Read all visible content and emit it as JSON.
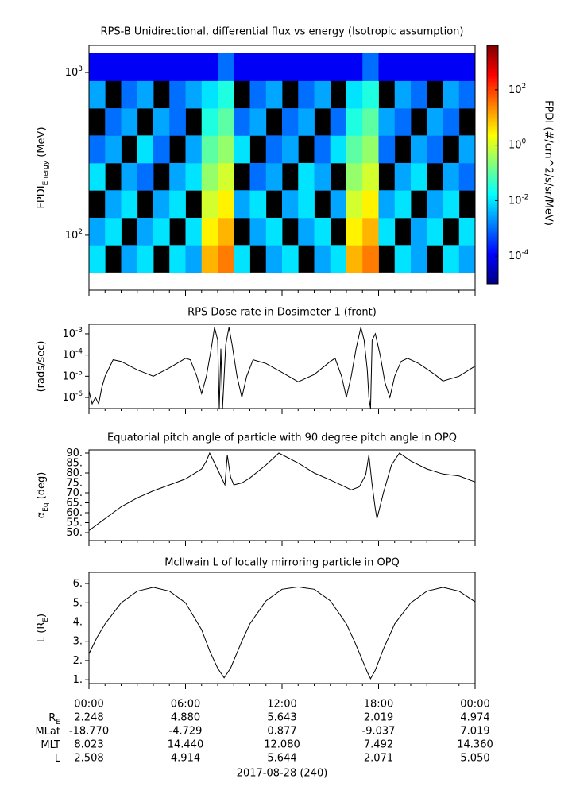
{
  "chart_data": [
    {
      "type": "spectrogram",
      "title": "RPS-B  Unidirectional, differential flux vs energy (Isotropic assumption)",
      "ylabel": {
        "text": "FPDI",
        "sub": "Energy",
        "suffix": " (MeV)"
      },
      "log_y": true,
      "ylim": [
        46,
        1466
      ],
      "yticks": [
        {
          "value": 100,
          "label": "10",
          "sup": "2"
        },
        {
          "value": 1000,
          "label": "10",
          "sup": "3"
        }
      ],
      "xlim": [
        0,
        24
      ],
      "xticks": [
        0,
        6,
        12,
        18,
        24
      ],
      "x_minor_step": 1,
      "x_bins": [
        0,
        1,
        2,
        3,
        4,
        5,
        6,
        7,
        8,
        9,
        10,
        11,
        12,
        13,
        14,
        15,
        16,
        17,
        18,
        19,
        20,
        21,
        22,
        23,
        24
      ],
      "y_bins": [
        59,
        87,
        128,
        189,
        278,
        410,
        603,
        889,
        1310
      ],
      "values": [
        [
          0.01,
          null,
          0.003,
          0.01,
          null,
          0.01,
          0.003,
          10,
          30,
          0.01,
          null,
          0.003,
          0.01,
          null,
          0.003,
          0.01,
          10,
          30,
          null,
          0.01,
          0.003,
          null,
          0.01,
          0.003
        ],
        [
          0.003,
          0.01,
          null,
          0.003,
          0.01,
          null,
          0.01,
          3,
          10,
          null,
          0.003,
          0.01,
          null,
          0.003,
          0.01,
          null,
          3,
          10,
          0.01,
          null,
          0.003,
          0.01,
          null,
          0.01
        ],
        [
          null,
          0.003,
          0.01,
          null,
          0.003,
          0.01,
          null,
          1,
          3,
          0.003,
          0.01,
          null,
          0.003,
          0.01,
          null,
          0.003,
          1,
          3,
          0.003,
          0.01,
          null,
          0.003,
          0.01,
          null
        ],
        [
          0.01,
          null,
          0.003,
          0.001,
          null,
          0.003,
          0.01,
          0.3,
          1,
          null,
          0.001,
          0.003,
          null,
          0.01,
          0.003,
          null,
          0.3,
          1,
          null,
          0.003,
          0.01,
          null,
          0.003,
          0.001
        ],
        [
          0.001,
          0.003,
          null,
          0.01,
          0.001,
          null,
          0.003,
          0.1,
          0.3,
          0.01,
          null,
          0.001,
          0.003,
          null,
          0.001,
          0.01,
          0.1,
          0.3,
          0.001,
          null,
          0.003,
          0.001,
          null,
          0.003
        ],
        [
          null,
          0.001,
          0.003,
          null,
          0.003,
          0.001,
          null,
          0.03,
          0.1,
          0.001,
          0.003,
          null,
          0.001,
          0.003,
          null,
          0.001,
          0.03,
          0.1,
          0.003,
          0.001,
          null,
          0.003,
          0.001,
          null
        ],
        [
          0.003,
          null,
          0.001,
          0.003,
          null,
          0.001,
          0.003,
          0.01,
          0.03,
          null,
          0.001,
          0.003,
          null,
          0.001,
          0.003,
          null,
          0.01,
          0.03,
          null,
          0.003,
          0.001,
          null,
          0.003,
          0.001
        ],
        [
          0.0001,
          0.0001,
          0.0001,
          0.0001,
          0.0001,
          0.0001,
          0.0001,
          0.0001,
          0.001,
          0.0001,
          0.0001,
          0.0001,
          0.0001,
          0.0001,
          0.0001,
          0.0001,
          0.0001,
          0.001,
          0.0001,
          0.0001,
          0.0001,
          0.0001,
          0.0001,
          0.0001
        ]
      ],
      "colormap": "jet",
      "zlim": [
        1e-05,
        4000
      ],
      "zticks": [
        {
          "value": 100,
          "label": "10",
          "sup": "2"
        },
        {
          "value": 1,
          "label": "10",
          "sup": "0"
        },
        {
          "value": 0.01,
          "label": "10",
          "sup": "-2"
        },
        {
          "value": 0.0001,
          "label": "10",
          "sup": "-4"
        }
      ],
      "zlabel": "FPDI (#/cm^2/s/sr/MeV)"
    },
    {
      "type": "line",
      "title": "RPS  Dose rate in Dosimeter 1 (front)",
      "ylabel": "(rads/sec)",
      "log_y": true,
      "ylim": [
        3e-07,
        0.0028
      ],
      "yticks": [
        {
          "value": 1e-06,
          "label": "10",
          "sup": "-6"
        },
        {
          "value": 1e-05,
          "label": "10",
          "sup": "-5"
        },
        {
          "value": 0.0001,
          "label": "10",
          "sup": "-4"
        },
        {
          "value": 0.001,
          "label": "10",
          "sup": "-3"
        }
      ],
      "xlim": [
        0,
        24
      ],
      "xticks": [
        0,
        6,
        12,
        18,
        24
      ],
      "x_minor_step": 1,
      "color": "#000000",
      "x": [
        0,
        0.2,
        0.4,
        0.6,
        0.8,
        1.0,
        1.5,
        2,
        3,
        4,
        5,
        6,
        6.3,
        6.7,
        7.0,
        7.3,
        7.6,
        7.8,
        8.0,
        8.1,
        8.2,
        8.3,
        8.5,
        8.7,
        8.9,
        9.2,
        9.5,
        9.8,
        10.2,
        11,
        12,
        13,
        14,
        15,
        15.3,
        15.7,
        16,
        16.3,
        16.6,
        16.9,
        17.1,
        17.3,
        17.4,
        17.5,
        17.6,
        17.8,
        18.1,
        18.4,
        18.7,
        19,
        19.4,
        19.8,
        20.5,
        21.5,
        22,
        23,
        24
      ],
      "values": [
        2e-06,
        5e-07,
        1e-06,
        5e-07,
        3e-06,
        1e-05,
        6e-05,
        5e-05,
        2e-05,
        1e-05,
        2.5e-05,
        7e-05,
        6e-05,
        1e-05,
        1.5e-06,
        1e-05,
        0.0002,
        0.002,
        0.0005,
        3e-07,
        0.0002,
        3e-07,
        0.0003,
        0.002,
        0.0003,
        1e-05,
        1e-06,
        1e-05,
        6e-05,
        4e-05,
        1.5e-05,
        5.5e-06,
        1.2e-05,
        5e-05,
        7e-05,
        1e-05,
        1e-06,
        1e-05,
        0.0002,
        0.002,
        0.0005,
        2e-05,
        1e-06,
        3e-07,
        0.0005,
        0.001,
        0.0001,
        5e-06,
        1e-06,
        1e-05,
        5e-05,
        7e-05,
        4e-05,
        1.2e-05,
        6e-06,
        1e-05,
        3e-05
      ]
    },
    {
      "type": "line",
      "title": "Equatorial pitch angle of particle with 90 degree pitch angle in OPQ",
      "ylabel": {
        "text": "α",
        "sub": "Eq",
        "suffix": " (deg)"
      },
      "ylim": [
        46,
        91.6
      ],
      "yticks": [
        {
          "value": 50,
          "label": "50."
        },
        {
          "value": 55,
          "label": "55."
        },
        {
          "value": 60,
          "label": "60."
        },
        {
          "value": 65,
          "label": "65."
        },
        {
          "value": 70,
          "label": "70."
        },
        {
          "value": 75,
          "label": "75."
        },
        {
          "value": 80,
          "label": "80."
        },
        {
          "value": 85,
          "label": "85."
        },
        {
          "value": 90,
          "label": "90."
        }
      ],
      "xlim": [
        0,
        24
      ],
      "xticks": [
        0,
        6,
        12,
        18,
        24
      ],
      "x_minor_step": 1,
      "color": "#000000",
      "x": [
        0,
        1,
        2,
        3,
        4,
        5,
        6,
        7,
        7.3,
        7.5,
        7.8,
        8.1,
        8.45,
        8.6,
        8.8,
        9.0,
        9.5,
        10,
        11,
        11.8,
        13,
        14,
        15,
        15.8,
        16.3,
        16.8,
        17.2,
        17.4,
        17.6,
        17.8,
        17.9,
        18.3,
        18.8,
        19.3,
        20,
        21,
        22,
        23,
        24
      ],
      "values": [
        51,
        57,
        63,
        67.5,
        71,
        74,
        77,
        82,
        86,
        90,
        85,
        80,
        74,
        89,
        78,
        74,
        75,
        77.5,
        84,
        90,
        85,
        80,
        76.5,
        73.5,
        71.5,
        73,
        79,
        89,
        74,
        62,
        57,
        70,
        84,
        90,
        86,
        82,
        79.5,
        78.5,
        75.5
      ]
    },
    {
      "type": "line",
      "title": "McIlwain L of locally mirroring particle in OPQ",
      "ylabel": {
        "text": "L (R",
        "sub": "E",
        "suffix": ")"
      },
      "ylim": [
        0.8,
        6.58
      ],
      "yticks": [
        {
          "value": 1,
          "label": "1."
        },
        {
          "value": 2,
          "label": "2."
        },
        {
          "value": 3,
          "label": "3."
        },
        {
          "value": 4,
          "label": "4."
        },
        {
          "value": 5,
          "label": "5."
        },
        {
          "value": 6,
          "label": "6."
        }
      ],
      "xlim": [
        0,
        24
      ],
      "xticks": [
        {
          "value": 0,
          "label": "00:00"
        },
        {
          "value": 6,
          "label": "06:00"
        },
        {
          "value": 12,
          "label": "12:00"
        },
        {
          "value": 18,
          "label": "18:00"
        },
        {
          "value": 24,
          "label": "00:00"
        }
      ],
      "x_minor_step": 1,
      "color": "#000000",
      "x": [
        0,
        0.5,
        1,
        2,
        3,
        4,
        5,
        6,
        7,
        7.5,
        8,
        8.4,
        8.8,
        9.5,
        10,
        11,
        12,
        13,
        14,
        15,
        16,
        16.5,
        17,
        17.3,
        17.5,
        17.8,
        18.3,
        19,
        20,
        21,
        22,
        23,
        24
      ],
      "values": [
        2.35,
        3.2,
        3.9,
        5.0,
        5.6,
        5.8,
        5.6,
        5.0,
        3.6,
        2.5,
        1.6,
        1.1,
        1.6,
        3.0,
        3.9,
        5.1,
        5.7,
        5.82,
        5.7,
        5.1,
        3.9,
        3.0,
        2.0,
        1.4,
        1.05,
        1.5,
        2.6,
        3.9,
        5.0,
        5.6,
        5.8,
        5.6,
        5.05
      ],
      "ephemeris": [
        {
          "label": "R",
          "sub": "E",
          "values": [
            "2.248",
            "4.880",
            "5.643",
            "2.019",
            "4.974"
          ]
        },
        {
          "label": "MLat",
          "values": [
            "-18.770",
            "-4.729",
            "0.877",
            "-9.037",
            "7.019"
          ]
        },
        {
          "label": "MLT",
          "values": [
            "8.023",
            "14.440",
            "12.080",
            "7.492",
            "14.360"
          ]
        },
        {
          "label": "L",
          "values": [
            "2.508",
            "4.914",
            "5.644",
            "2.071",
            "5.050"
          ]
        }
      ],
      "xlabel": "2017-08-28 (240)"
    }
  ]
}
